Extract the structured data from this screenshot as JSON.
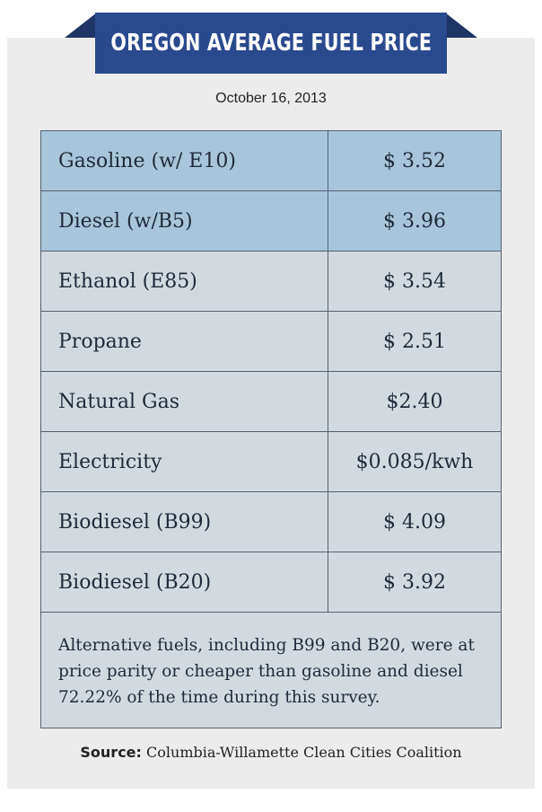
{
  "banner": {
    "title": "OREGON AVERAGE FUEL PRICE"
  },
  "date": "October 16, 2013",
  "fuels": [
    {
      "name": "Gasoline (w/ E10)",
      "price": "$ 3.52",
      "highlight": true
    },
    {
      "name": "Diesel (w/B5)",
      "price": "$ 3.96",
      "highlight": true
    },
    {
      "name": "Ethanol (E85)",
      "price": "$ 3.54",
      "highlight": false
    },
    {
      "name": "Propane",
      "price": "$ 2.51",
      "highlight": false
    },
    {
      "name": "Natural Gas",
      "price": "$2.40",
      "highlight": false
    },
    {
      "name": "Electricity",
      "price": "$0.085/kwh",
      "highlight": false
    },
    {
      "name": "Biodiesel (B99)",
      "price": "$ 4.09",
      "highlight": false
    },
    {
      "name": "Biodiesel (B20)",
      "price": "$ 3.92",
      "highlight": false
    }
  ],
  "note": "Alternative fuels, including B99 and B20, were at price parity or cheaper than gasoline and diesel 72.22% of the time during this survey.",
  "source": {
    "label": "Source:",
    "text": "Columbia-Willamette Clean Cities Coalition"
  },
  "colors": {
    "banner": "#2a4a8e",
    "banner_fold": "#1f3566",
    "highlight_row": "#a8c6db",
    "row": "#d3dadf",
    "card": "#ececec"
  }
}
